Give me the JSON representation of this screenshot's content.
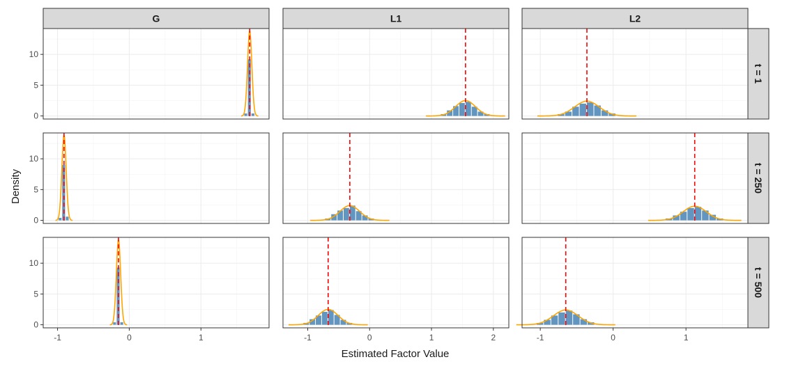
{
  "chart_data": {
    "type": "histogram-facet-grid",
    "xlabel": "Estimated Factor Value",
    "ylabel": "Density",
    "columns": [
      "G",
      "L1",
      "L2"
    ],
    "rows": [
      "t = 1",
      "t = 250",
      "t = 500"
    ],
    "scales": {
      "G": {
        "xlim": [
          -1.2,
          1.95
        ],
        "xticks": [
          -1,
          0,
          1
        ]
      },
      "L1": {
        "xlim": [
          -1.4,
          2.25
        ],
        "xticks": [
          -1,
          0,
          1,
          2
        ]
      },
      "L2": {
        "xlim": [
          -1.25,
          1.85
        ],
        "xticks": [
          -1,
          0,
          1
        ]
      }
    },
    "ylim": [
      -0.5,
      14.2
    ],
    "yticks": [
      0,
      5,
      10
    ],
    "panels": [
      {
        "row": "t = 1",
        "col": "G",
        "truth": 1.68,
        "sd": 0.03,
        "peak": 13.8,
        "binwidth": 0.05,
        "bars": [
          0.4,
          9.2,
          0.4
        ]
      },
      {
        "row": "t = 1",
        "col": "L1",
        "truth": 1.55,
        "sd": 0.16,
        "peak": 2.5,
        "binwidth": 0.1,
        "bars": [
          0.3,
          0.9,
          1.6,
          2.1,
          2.3,
          1.5,
          0.7,
          0.3
        ]
      },
      {
        "row": "t = 1",
        "col": "L2",
        "truth": -0.36,
        "sd": 0.17,
        "peak": 2.4,
        "binwidth": 0.1,
        "bars": [
          0.3,
          0.7,
          1.5,
          2.0,
          2.2,
          1.7,
          0.9,
          0.4
        ]
      },
      {
        "row": "t = 250",
        "col": "G",
        "truth": -0.91,
        "sd": 0.03,
        "peak": 13.8,
        "binwidth": 0.05,
        "bars": [
          0.4,
          9.0,
          0.6
        ]
      },
      {
        "row": "t = 250",
        "col": "L1",
        "truth": -0.32,
        "sd": 0.16,
        "peak": 2.4,
        "binwidth": 0.1,
        "bars": [
          0.3,
          1.0,
          1.6,
          2.0,
          2.4,
          1.5,
          0.8,
          0.3
        ]
      },
      {
        "row": "t = 250",
        "col": "L2",
        "truth": 1.12,
        "sd": 0.16,
        "peak": 2.3,
        "binwidth": 0.1,
        "bars": [
          0.3,
          0.8,
          1.4,
          2.0,
          2.2,
          1.6,
          0.9,
          0.3
        ]
      },
      {
        "row": "t = 500",
        "col": "G",
        "truth": -0.15,
        "sd": 0.03,
        "peak": 13.8,
        "binwidth": 0.05,
        "bars": [
          0.4,
          9.3,
          0.4
        ]
      },
      {
        "row": "t = 500",
        "col": "L1",
        "truth": -0.67,
        "sd": 0.16,
        "peak": 2.5,
        "binwidth": 0.1,
        "bars": [
          0.3,
          0.9,
          1.5,
          2.1,
          2.4,
          1.6,
          0.8,
          0.3
        ]
      },
      {
        "row": "t = 500",
        "col": "L2",
        "truth": -0.65,
        "sd": 0.17,
        "peak": 2.4,
        "binwidth": 0.1,
        "bars": [
          0.3,
          0.8,
          1.5,
          2.0,
          2.3,
          1.7,
          0.9,
          0.4
        ]
      }
    ],
    "colors": {
      "bar": "#4682b4",
      "density": "#ffa500",
      "truth_line": "#ff0000"
    },
    "grid": true
  }
}
